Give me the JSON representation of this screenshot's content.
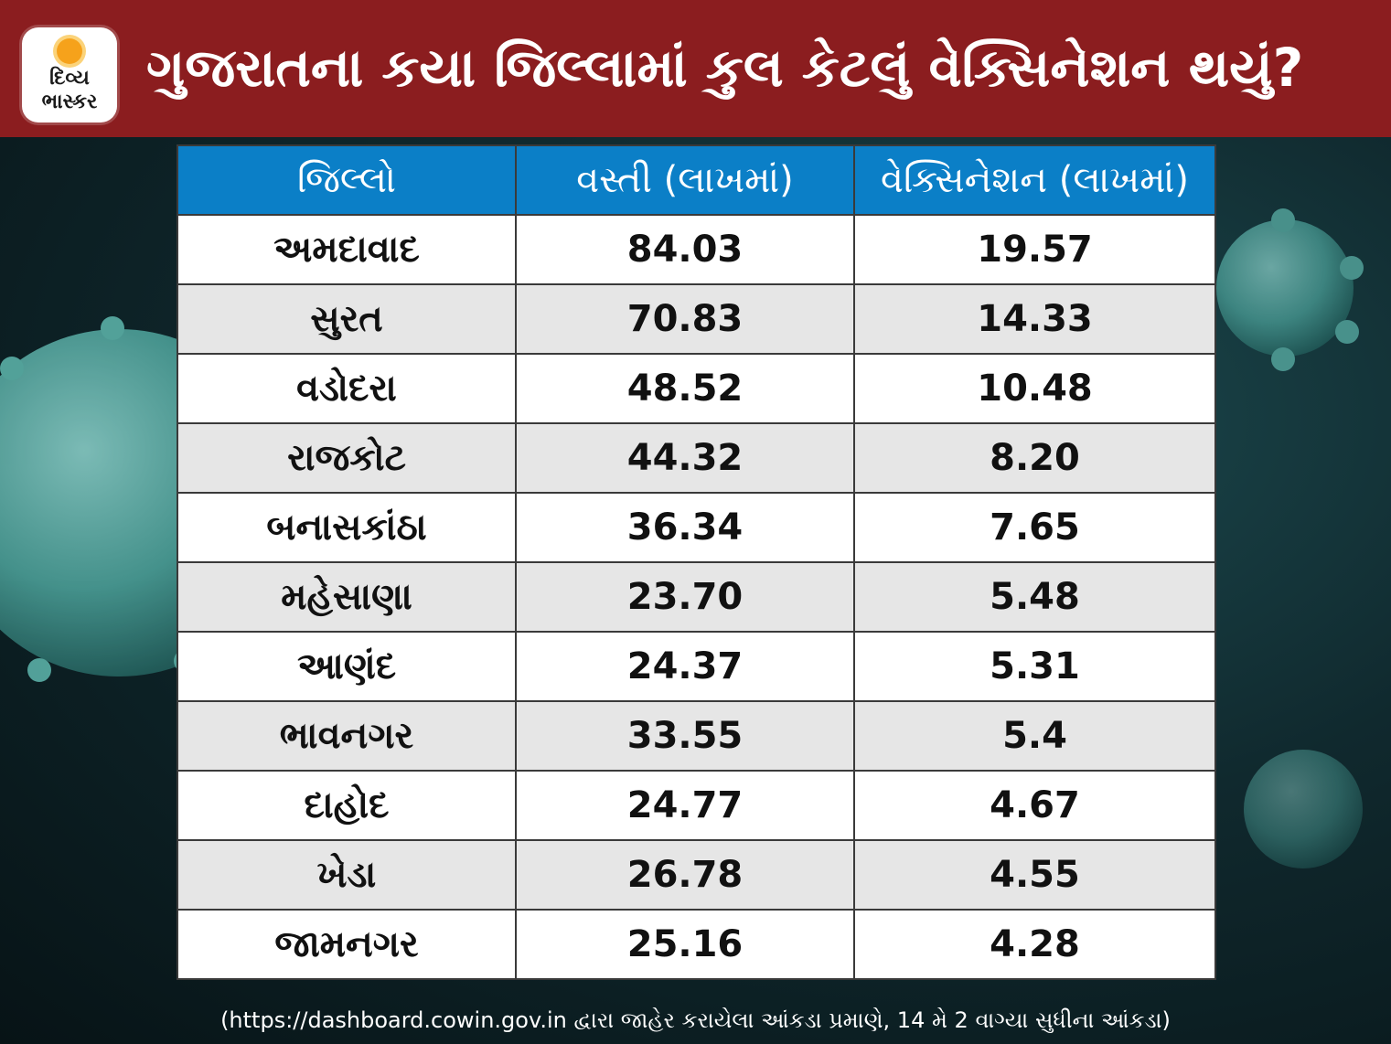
{
  "header": {
    "title": "ગુજરાતના કયા જિલ્લામાં કુલ કેટલું વેક્સિનેશન થયું?",
    "logo_line1": "દિવ્ય",
    "logo_line2": "ભાસ્કર"
  },
  "table": {
    "columns": [
      "જિલ્લો",
      "વસ્તી (લાખમાં)",
      "વેક્સિનેશન (લાખમાં)"
    ],
    "rows": [
      [
        "અમદાવાદ",
        "84.03",
        "19.57"
      ],
      [
        "સુરત",
        "70.83",
        "14.33"
      ],
      [
        "વડોદરા",
        "48.52",
        "10.48"
      ],
      [
        "રાજકોટ",
        "44.32",
        "8.20"
      ],
      [
        "બનાસકાંઠા",
        "36.34",
        "7.65"
      ],
      [
        "મહેસાણા",
        "23.70",
        "5.48"
      ],
      [
        "આણંદ",
        "24.37",
        "5.31"
      ],
      [
        "ભાવનગર",
        "33.55",
        "5.4"
      ],
      [
        "દાહોદ",
        "24.77",
        "4.67"
      ],
      [
        "ખેડા",
        "26.78",
        "4.55"
      ],
      [
        "જામનગર",
        "25.16",
        "4.28"
      ]
    ]
  },
  "footnote": "(https://dashboard.cowin.gov.in દ્વારા જાહેર કરાયેલા આંકડા પ્રમાણે, 14 મે 2 વાગ્યા સુધીના આંકડા)",
  "colors": {
    "header_bg": "#8b1d1f",
    "table_header_bg": "#0b7fc7",
    "row_even_bg": "#e6e6e6",
    "row_odd_bg": "#ffffff"
  }
}
